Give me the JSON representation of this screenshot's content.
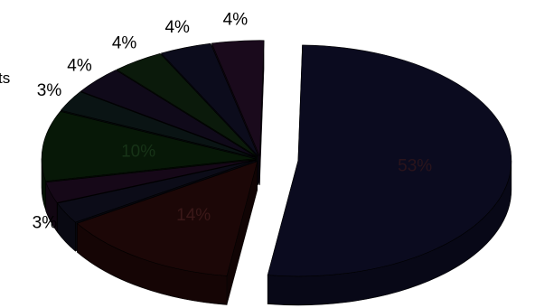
{
  "chart_data": {
    "type": "pie",
    "style": "3d-exploded",
    "title": "",
    "legend": "none",
    "slices": [
      {
        "label": "53%",
        "value": 53,
        "color": "#0b0b1f",
        "label_pos": "inside",
        "label_color": "#2a141c"
      },
      {
        "label": "14%",
        "value": 14,
        "color": "#1c0707",
        "label_pos": "inside",
        "label_color": "#3a1818"
      },
      {
        "label": "3%",
        "value": 3,
        "color": "#0c0c18",
        "label_pos": "outside",
        "label_color": "#000000"
      },
      {
        "label": "3%",
        "value": 3,
        "color": "#160818",
        "label_pos": "none",
        "label_color": "#000000"
      },
      {
        "label": "10%",
        "value": 10,
        "color": "#071807",
        "label_pos": "inside",
        "label_color": "#173317"
      },
      {
        "label": "3%",
        "value": 3,
        "color": "#0a1414",
        "label_pos": "outside",
        "label_color": "#000000"
      },
      {
        "label": "4%",
        "value": 4,
        "color": "#100a1a",
        "label_pos": "outside",
        "label_color": "#000000"
      },
      {
        "label": "4%",
        "value": 4,
        "color": "#0b1a0b",
        "label_pos": "outside",
        "label_color": "#000000"
      },
      {
        "label": "4%",
        "value": 4,
        "color": "#0c0c1c",
        "label_pos": "outside",
        "label_color": "#000000"
      },
      {
        "label": "4%",
        "value": 4,
        "color": "#1a0a1c",
        "label_pos": "outside",
        "label_color": "#000000"
      }
    ],
    "cut_text": "ts"
  }
}
